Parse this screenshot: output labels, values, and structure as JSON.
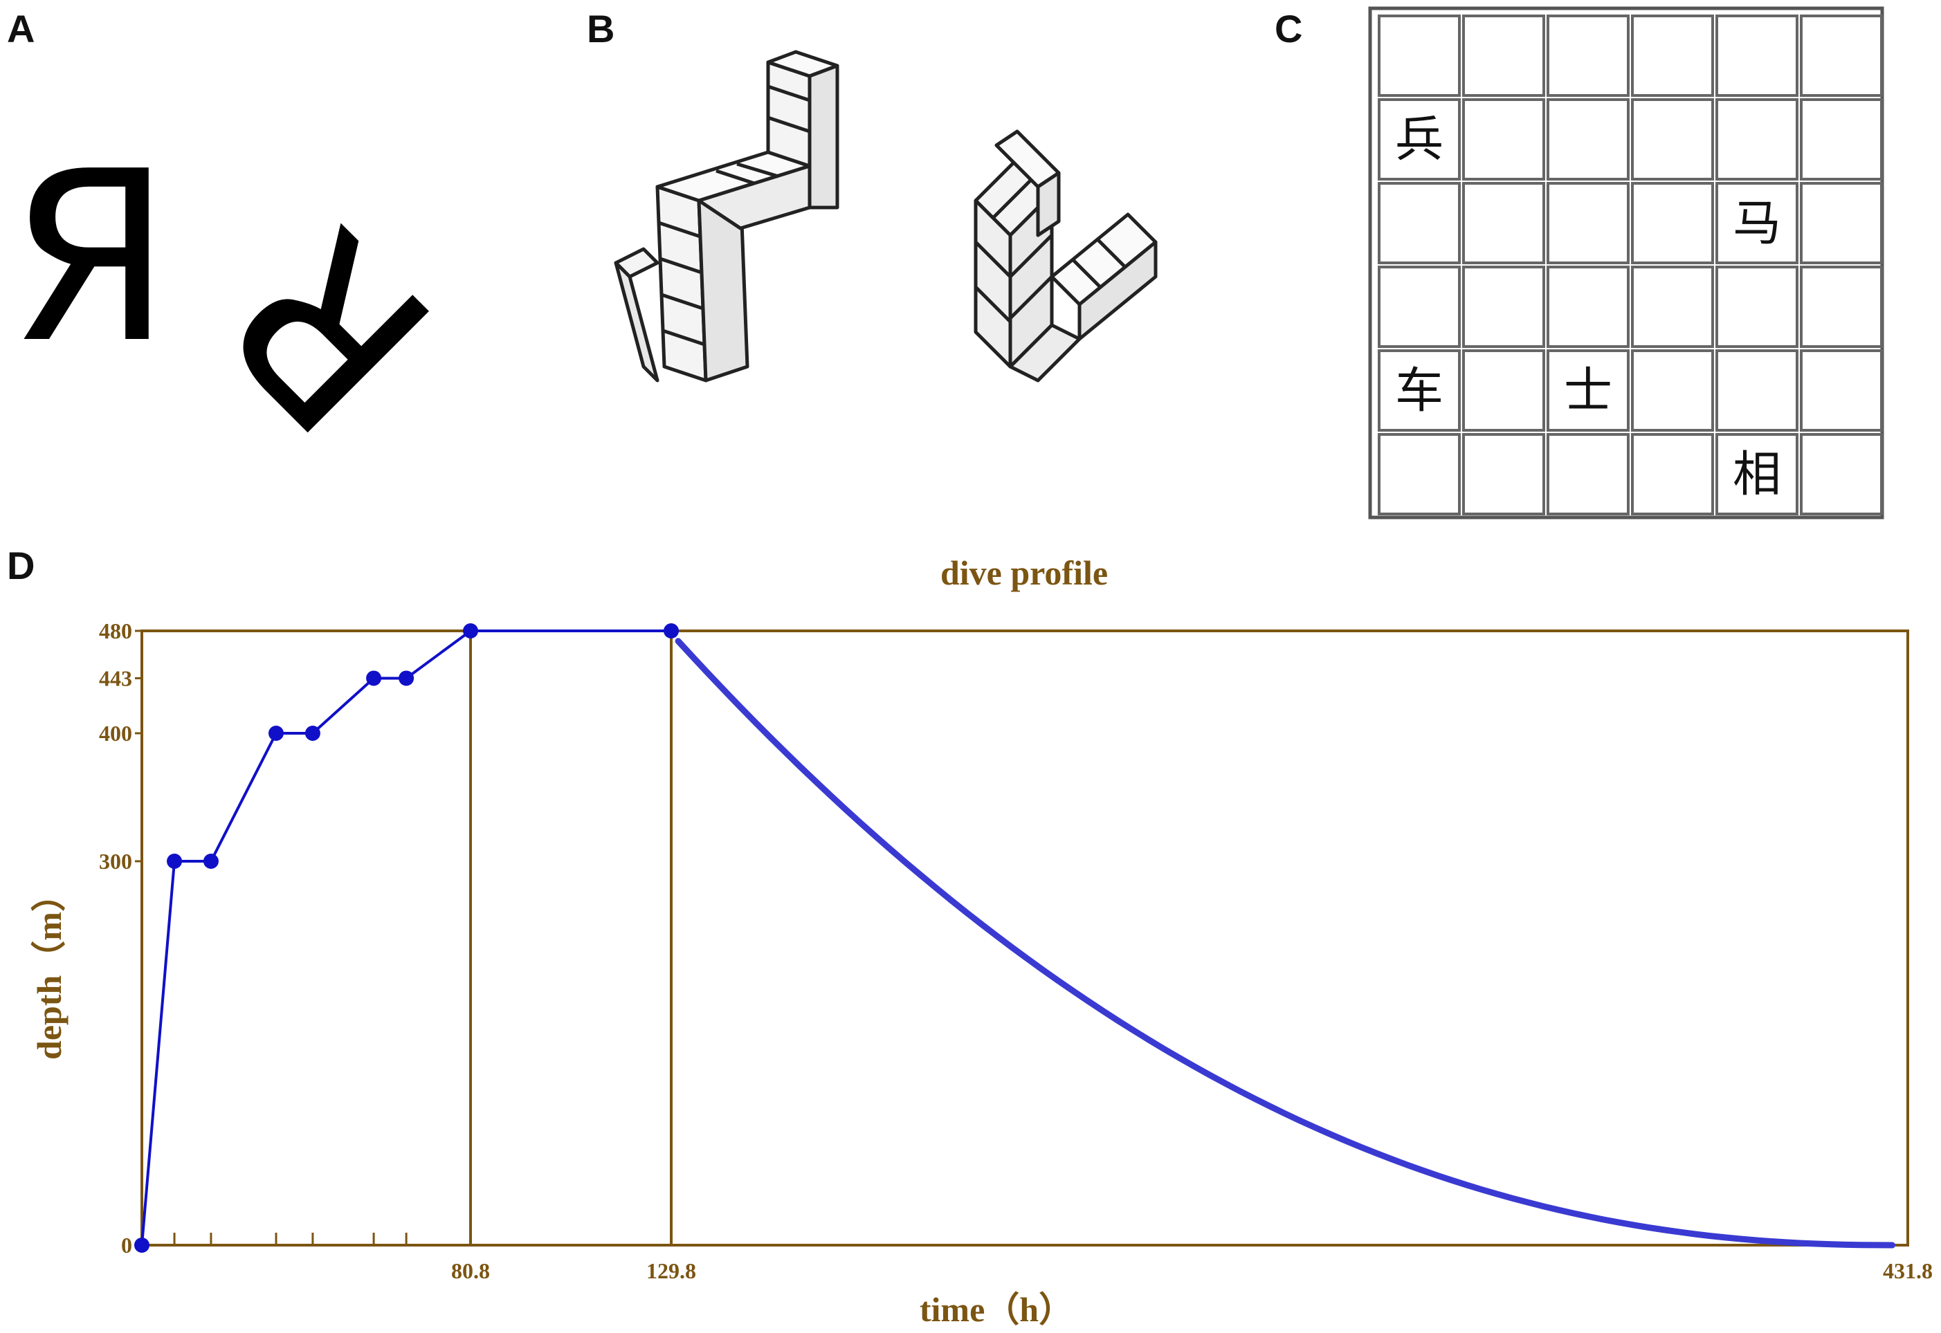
{
  "panels": {
    "a_label": "A",
    "b_label": "B",
    "c_label": "C",
    "d_label": "D"
  },
  "panel_a": {
    "glyph_upright": "Я",
    "glyph_rotated": "Я"
  },
  "panel_c": {
    "rows": 6,
    "cols": 6,
    "pieces": [
      {
        "char": "兵",
        "row": 1,
        "col": 0
      },
      {
        "char": "马",
        "row": 2,
        "col": 4
      },
      {
        "char": "车",
        "row": 4,
        "col": 0
      },
      {
        "char": "士",
        "row": 4,
        "col": 2
      },
      {
        "char": "相",
        "row": 5,
        "col": 4
      }
    ]
  },
  "colors": {
    "axis": "#7b5512",
    "series": "#1010c8",
    "curve": "#3a3ad2",
    "text": "#7b5512"
  },
  "chart_data": {
    "type": "line",
    "title": "dive profile",
    "xlabel": "time（h）",
    "ylabel": "depth（m）",
    "xlim": [
      0,
      431.8
    ],
    "ylim": [
      0,
      480
    ],
    "x_tick_labels": [
      "80.8",
      "129.8",
      "431.8"
    ],
    "x_tick_values": [
      80.8,
      129.8,
      431.8
    ],
    "y_tick_labels": [
      "0",
      "300",
      "400",
      "443",
      "480"
    ],
    "y_tick_values": [
      0,
      300,
      400,
      443,
      480
    ],
    "minor_x_ticks": [
      8,
      17,
      33,
      42,
      57,
      65
    ],
    "vertical_lines": [
      80.8,
      129.8
    ],
    "series": [
      {
        "style": "line-with-markers",
        "x": [
          0,
          8,
          17,
          33,
          42,
          57,
          65,
          80.8,
          129.8
        ],
        "y": [
          0,
          300,
          300,
          400,
          400,
          443,
          443,
          480,
          480
        ]
      },
      {
        "style": "smooth-curve",
        "x_start": 131.5,
        "x_end": 428,
        "y_start": 472,
        "y_end": 0
      }
    ],
    "grid": false
  }
}
